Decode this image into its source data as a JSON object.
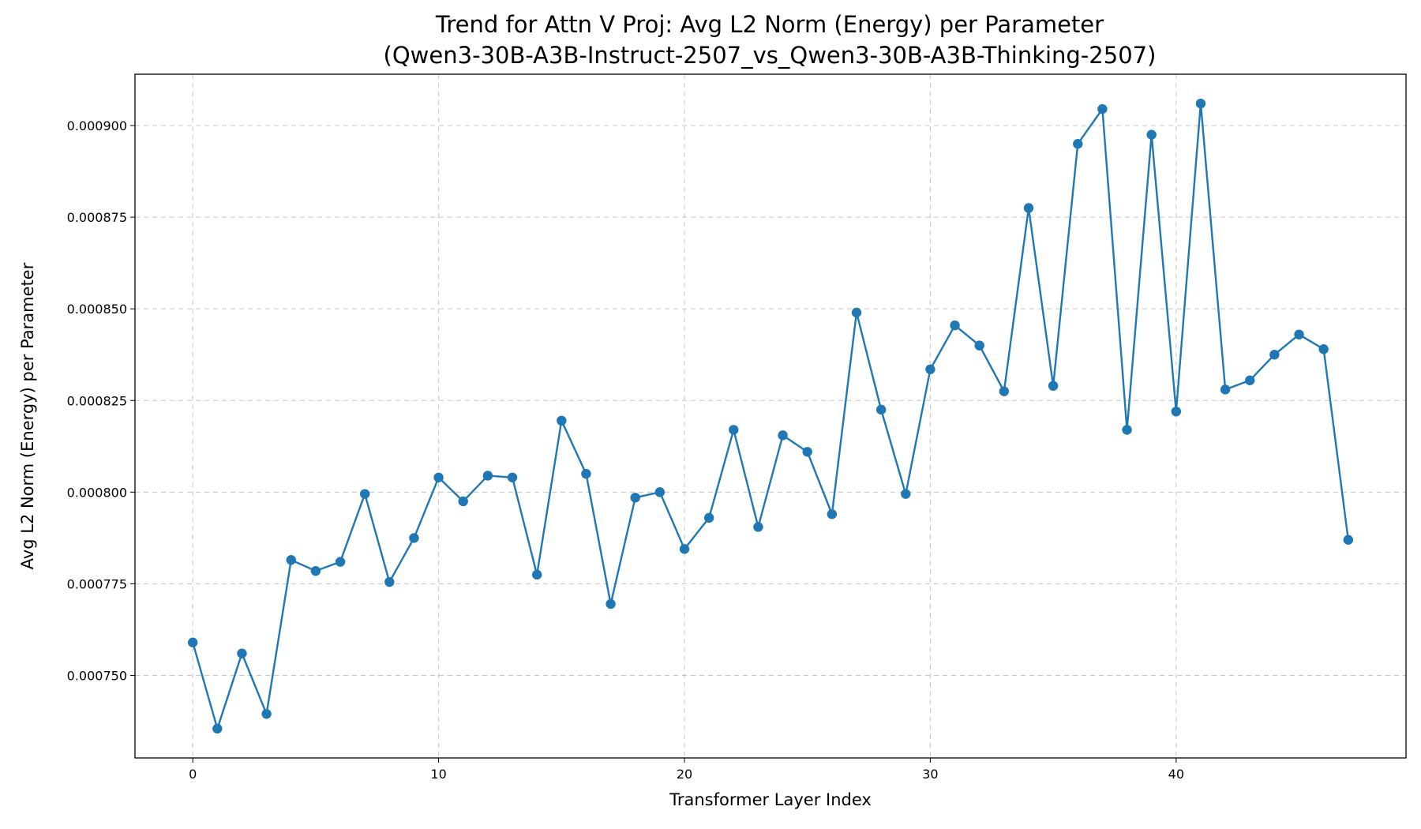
{
  "chart_data": {
    "type": "line",
    "title_line1": "Trend for Attn V Proj: Avg L2 Norm (Energy) per Parameter",
    "title_line2": "(Qwen3-30B-A3B-Instruct-2507_vs_Qwen3-30B-A3B-Thinking-2507)",
    "xlabel": "Transformer Layer Index",
    "ylabel": "Avg L2 Norm (Energy) per Parameter",
    "xlim": [
      -2.35,
      49.35
    ],
    "ylim": [
      0.0007275,
      0.000914
    ],
    "x_ticks": [
      0,
      10,
      20,
      30,
      40
    ],
    "x_tick_labels": [
      "0",
      "10",
      "20",
      "30",
      "40"
    ],
    "y_ticks": [
      0.00075,
      0.000775,
      0.0008,
      0.000825,
      0.00085,
      0.000875,
      0.0009
    ],
    "y_tick_labels": [
      "0.000750",
      "0.000775",
      "0.000800",
      "0.000825",
      "0.000850",
      "0.000875",
      "0.000900"
    ],
    "grid": true,
    "series": [
      {
        "name": "Attn V Proj",
        "color": "#1f77b4",
        "x": [
          0,
          1,
          2,
          3,
          4,
          5,
          6,
          7,
          8,
          9,
          10,
          11,
          12,
          13,
          14,
          15,
          16,
          17,
          18,
          19,
          20,
          21,
          22,
          23,
          24,
          25,
          26,
          27,
          28,
          29,
          30,
          31,
          32,
          33,
          34,
          35,
          36,
          37,
          38,
          39,
          40,
          41,
          42,
          43,
          44,
          45,
          46,
          47
        ],
        "values": [
          0.000759,
          0.0007355,
          0.000756,
          0.0007395,
          0.0007815,
          0.0007785,
          0.000781,
          0.0007995,
          0.0007755,
          0.0007875,
          0.000804,
          0.0007975,
          0.0008045,
          0.000804,
          0.0007775,
          0.0008195,
          0.000805,
          0.0007695,
          0.0007985,
          0.0008,
          0.0007845,
          0.000793,
          0.000817,
          0.0007905,
          0.0008155,
          0.000811,
          0.000794,
          0.000849,
          0.0008225,
          0.0007995,
          0.0008335,
          0.0008455,
          0.00084,
          0.0008275,
          0.0008775,
          0.000829,
          0.000895,
          0.0009045,
          0.000817,
          0.0008975,
          0.000822,
          0.000906,
          0.000828,
          0.0008305,
          0.0008375,
          0.000843,
          0.000839,
          0.000787
        ]
      }
    ]
  }
}
